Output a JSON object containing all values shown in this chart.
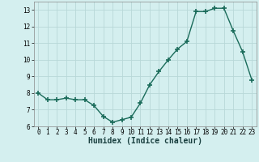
{
  "x": [
    0,
    1,
    2,
    3,
    4,
    5,
    6,
    7,
    8,
    9,
    10,
    11,
    12,
    13,
    14,
    15,
    16,
    17,
    18,
    19,
    20,
    21,
    22,
    23
  ],
  "y": [
    8.0,
    7.6,
    7.6,
    7.7,
    7.6,
    7.6,
    7.25,
    6.6,
    6.25,
    6.4,
    6.55,
    7.4,
    8.5,
    9.3,
    10.0,
    10.65,
    11.1,
    12.9,
    12.9,
    13.1,
    13.1,
    11.75,
    10.5,
    8.8
  ],
  "line_color": "#1a6b5a",
  "marker": "+",
  "markersize": 4,
  "markeredgewidth": 1.2,
  "linewidth": 1.0,
  "bg_color": "#d4efef",
  "grid_color": "#b8d8d8",
  "xlabel": "Humidex (Indice chaleur)",
  "xlabel_fontsize": 7,
  "ylim": [
    6,
    13.5
  ],
  "yticks": [
    6,
    7,
    8,
    9,
    10,
    11,
    12,
    13
  ],
  "xticks": [
    0,
    1,
    2,
    3,
    4,
    5,
    6,
    7,
    8,
    9,
    10,
    11,
    12,
    13,
    14,
    15,
    16,
    17,
    18,
    19,
    20,
    21,
    22,
    23
  ],
  "tick_fontsize": 5.5,
  "spine_color": "#888888"
}
